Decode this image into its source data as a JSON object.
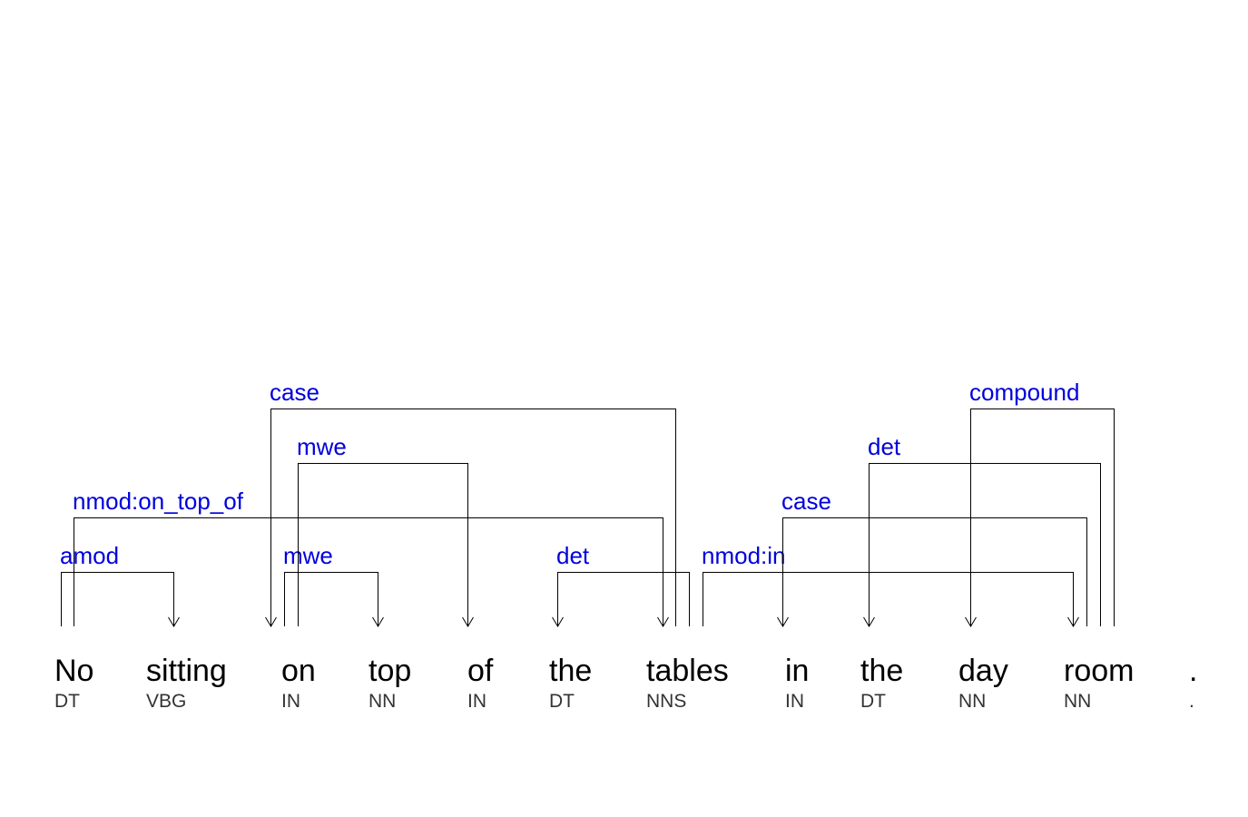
{
  "colors": {
    "label": "#0000dd",
    "line": "#000000",
    "word": "#000000",
    "tag": "#333333"
  },
  "tokens": [
    {
      "word": "No",
      "tag": "DT"
    },
    {
      "word": "sitting",
      "tag": "VBG"
    },
    {
      "word": "on",
      "tag": "IN"
    },
    {
      "word": "top",
      "tag": "NN"
    },
    {
      "word": "of",
      "tag": "IN"
    },
    {
      "word": "the",
      "tag": "DT"
    },
    {
      "word": "tables",
      "tag": "NNS"
    },
    {
      "word": "in",
      "tag": "IN"
    },
    {
      "word": "the",
      "tag": "DT"
    },
    {
      "word": "day",
      "tag": "NN"
    },
    {
      "word": "room",
      "tag": "NN"
    },
    {
      "word": ".",
      "tag": "."
    }
  ],
  "arcs": [
    {
      "label": "amod",
      "head": 0,
      "dependent": 1,
      "level": 1
    },
    {
      "label": "mwe",
      "head": 2,
      "dependent": 3,
      "level": 1
    },
    {
      "label": "det",
      "head": 6,
      "dependent": 5,
      "level": 1
    },
    {
      "label": "nmod:in",
      "head": 6,
      "dependent": 10,
      "level": 1
    },
    {
      "label": "nmod:on_top_of",
      "head": 0,
      "dependent": 6,
      "level": 2
    },
    {
      "label": "case",
      "head": 10,
      "dependent": 7,
      "level": 2
    },
    {
      "label": "mwe",
      "head": 2,
      "dependent": 4,
      "level": 3
    },
    {
      "label": "det",
      "head": 10,
      "dependent": 8,
      "level": 3
    },
    {
      "label": "case",
      "head": 6,
      "dependent": 2,
      "level": 4
    },
    {
      "label": "compound",
      "head": 10,
      "dependent": 9,
      "level": 4
    }
  ]
}
